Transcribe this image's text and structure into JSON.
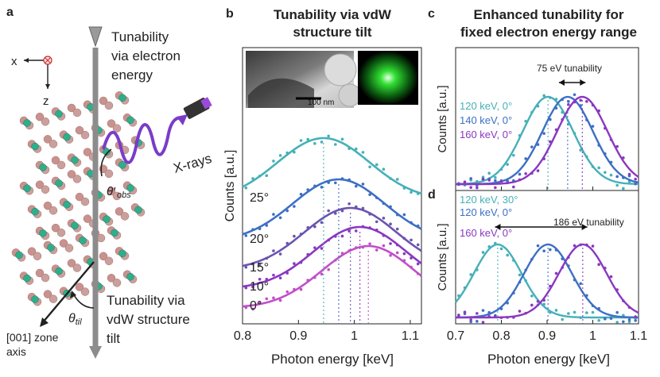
{
  "panel_a": {
    "label": "a",
    "top_text": [
      "Tunability",
      "via electron",
      "energy"
    ],
    "axis_x": "x",
    "axis_z": "z",
    "xray_label": "X-rays",
    "theta_obs": "θ′",
    "theta_obs_sub": "obs",
    "theta_til": "θ",
    "theta_til_sub": "til",
    "bottom_text": [
      "Tunability via",
      "vdW structure",
      "tilt"
    ],
    "zone_axis": [
      "[001] zone",
      "axis"
    ]
  },
  "panel_b": {
    "label": "b",
    "title": [
      "Tunability via vdW",
      "structure tilt"
    ],
    "scale_bar": "100 nm",
    "ylabel": "Counts [a.u.]",
    "xlabel": "Photon energy [keV]"
  },
  "panel_c": {
    "label": "c",
    "title": [
      "Enhanced tunability for",
      "fixed electron energy range"
    ],
    "annotation": "75 eV tunability",
    "ylabel": "Counts [a.u.]"
  },
  "panel_d": {
    "label": "d",
    "annotation": "186 eV tunability",
    "ylabel": "Counts [a.u.]",
    "xlabel": "Photon energy [keV]"
  },
  "chart_data": [
    {
      "id": "b",
      "type": "line",
      "xlabel": "Photon energy [keV]",
      "ylabel": "Counts [a.u.]",
      "xlim": [
        0.8,
        1.12
      ],
      "xticks": [
        "0.8",
        "0.9",
        "1",
        "1.1"
      ],
      "series": [
        {
          "name": "0°",
          "peak": 1.025,
          "width": 0.055,
          "offset": 0.0,
          "color": "#c050c8"
        },
        {
          "name": "10°",
          "peak": 1.01,
          "width": 0.055,
          "offset": 0.12,
          "color": "#8a38c0"
        },
        {
          "name": "15°",
          "peak": 0.993,
          "width": 0.055,
          "offset": 0.24,
          "color": "#6a54b0"
        },
        {
          "name": "20°",
          "peak": 0.972,
          "width": 0.055,
          "offset": 0.42,
          "color": "#3d6fc4"
        },
        {
          "name": "25°",
          "peak": 0.945,
          "width": 0.055,
          "offset": 0.68,
          "color": "#46b0b8"
        }
      ]
    },
    {
      "id": "c",
      "type": "line",
      "xlim": [
        0.7,
        1.1
      ],
      "series": [
        {
          "name": "120 keV, 0°",
          "peak": 0.902,
          "width": 0.055,
          "color": "#46b0b8"
        },
        {
          "name": "140 keV, 0°",
          "peak": 0.945,
          "width": 0.055,
          "color": "#3d6fc4"
        },
        {
          "name": "160 keV, 0°",
          "peak": 0.977,
          "width": 0.055,
          "color": "#8a38c0"
        }
      ],
      "annotation": "75 eV tunability"
    },
    {
      "id": "d",
      "type": "line",
      "xlabel": "Photon energy [keV]",
      "xlim": [
        0.7,
        1.1
      ],
      "xticks": [
        "0.7",
        "0.8",
        "0.9",
        "1",
        "1.1"
      ],
      "series": [
        {
          "name": "120 keV, 30°",
          "peak": 0.792,
          "width": 0.052,
          "color": "#46b0b8"
        },
        {
          "name": "120 keV, 0°",
          "peak": 0.902,
          "width": 0.052,
          "color": "#3d6fc4"
        },
        {
          "name": "160 keV, 0°",
          "peak": 0.978,
          "width": 0.052,
          "color": "#8a38c0"
        }
      ],
      "annotation": "186 eV tunability"
    }
  ],
  "colors": {
    "cyan": "#46b0b8",
    "blue": "#3d6fc4",
    "purple": "#8a38c0",
    "magenta": "#c050c8",
    "slate": "#6a54b0"
  }
}
